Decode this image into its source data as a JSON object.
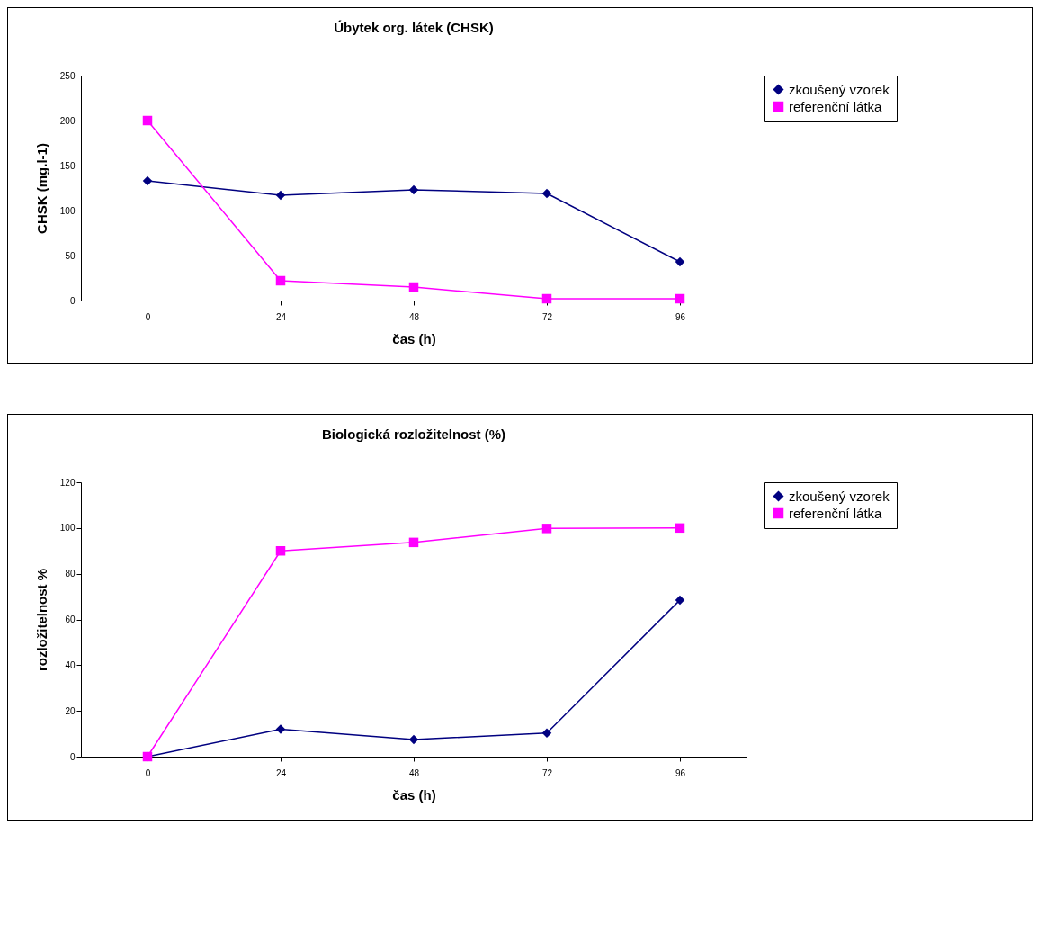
{
  "chart_data": [
    {
      "type": "line",
      "title": "Úbytek org. látek (CHSK)",
      "xlabel": "čas (h)",
      "ylabel": "CHSK (mg.l-1)",
      "categories": [
        "0",
        "24",
        "48",
        "72",
        "96"
      ],
      "ylim": [
        0,
        250
      ],
      "yticks": [
        0,
        50,
        100,
        150,
        200,
        250
      ],
      "grid": false,
      "legend": "right",
      "series": [
        {
          "name": "zkoušený vzorek",
          "color": "#000080",
          "marker": "diamond",
          "values": [
            133,
            117,
            123,
            119,
            43
          ]
        },
        {
          "name": "referenční látka",
          "color": "#ff00ff",
          "marker": "square",
          "values": [
            200,
            22,
            15,
            2,
            2
          ]
        }
      ]
    },
    {
      "type": "line",
      "title": "Biologická rozložitelnost (%)",
      "xlabel": "čas (h)",
      "ylabel": "rozložitelnost %",
      "categories": [
        "0",
        "24",
        "48",
        "72",
        "96"
      ],
      "ylim": [
        0,
        120
      ],
      "yticks": [
        0,
        20,
        40,
        60,
        80,
        100,
        120
      ],
      "grid": false,
      "legend": "right",
      "series": [
        {
          "name": "zkoušený vzorek",
          "color": "#000080",
          "marker": "diamond",
          "values": [
            0,
            12,
            7.5,
            10.3,
            68.5
          ]
        },
        {
          "name": "referenční látka",
          "color": "#ff00ff",
          "marker": "square",
          "values": [
            0,
            90,
            93.7,
            99.8,
            100
          ]
        }
      ]
    }
  ]
}
